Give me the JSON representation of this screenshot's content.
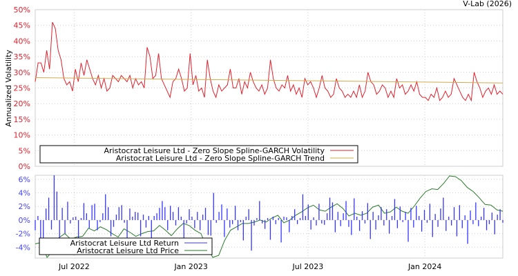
{
  "watermark": "V-Lab (2026)",
  "chart_data": [
    {
      "type": "line",
      "ylabel": "Annualized Volatility",
      "ylim": [
        0,
        50
      ],
      "xlim_months_since_2022_05": [
        0,
        24
      ],
      "yticks": [
        "0%",
        "5%",
        "10%",
        "15%",
        "20%",
        "25%",
        "30%",
        "35%",
        "40%",
        "45%",
        "50%"
      ],
      "legend_position": "bottom-left",
      "series": [
        {
          "name": "Aristocrat Leisure Ltd - Zero Slope Spline-GARCH Volatility",
          "color": "#e0202c",
          "values": [
            27,
            33,
            33,
            30,
            37,
            31,
            46,
            44,
            37,
            34,
            28,
            26,
            27,
            24,
            31,
            27,
            33,
            29,
            34,
            31,
            28,
            26,
            29,
            25,
            28,
            24,
            25,
            29,
            28,
            27,
            29,
            28,
            27,
            29,
            25,
            28,
            26,
            27,
            25,
            38,
            35,
            28,
            29,
            36,
            28,
            26,
            24,
            22,
            27,
            28,
            31,
            28,
            24,
            25,
            36,
            26,
            29,
            24,
            25,
            22,
            34,
            28,
            24,
            22,
            26,
            24,
            25,
            26,
            31,
            25,
            25,
            28,
            23,
            27,
            25,
            30,
            27,
            25,
            24,
            26,
            23,
            25,
            34,
            28,
            25,
            24,
            26,
            25,
            29,
            24,
            26,
            23,
            25,
            22,
            28,
            26,
            27,
            25,
            22,
            25,
            29,
            25,
            24,
            22,
            23,
            28,
            25,
            24,
            22,
            23,
            22,
            24,
            22,
            26,
            22,
            24,
            30,
            27,
            26,
            23,
            24,
            26,
            25,
            22,
            24,
            22,
            28,
            25,
            26,
            23,
            24,
            26,
            24,
            27,
            23,
            22,
            22,
            21,
            23,
            22,
            25,
            21,
            22,
            24,
            22,
            23,
            28,
            26,
            24,
            22,
            21,
            23,
            21,
            30,
            27,
            25,
            22,
            24,
            25,
            23,
            26,
            23,
            24,
            23
          ]
        },
        {
          "name": "Aristocrat Leisure Ltd - Zero Slope Spline-GARCH Trend",
          "color": "#d4a94a",
          "values": [
            28.3,
            26.6
          ]
        }
      ]
    },
    {
      "type": "bar+line",
      "ylim": [
        -5.6,
        6.6
      ],
      "yticks": [
        "-4%",
        "-2%",
        "0%",
        "2%",
        "4%",
        "6%"
      ],
      "xticks": [
        {
          "label": "Jul 2022",
          "month": 2
        },
        {
          "label": "Jan 2023",
          "month": 8
        },
        {
          "label": "Jul 2023",
          "month": 14
        },
        {
          "label": "Jan 2024",
          "month": 20
        }
      ],
      "legend_position": "bottom-left",
      "series": [
        {
          "name": "Aristocrat Leisure Ltd Return",
          "color": "#3333ff",
          "values": [
            -1.5,
            0.6,
            -3.5,
            -5,
            1.7,
            3.3,
            -1.4,
            6.6,
            4.2,
            -3,
            1.8,
            -2,
            2.7,
            -0.5,
            0.4,
            0.5,
            -2.7,
            0.3,
            2.5,
            1,
            -1.2,
            2.2,
            2.4,
            -1.5,
            -0.3,
            1,
            3.8,
            1.9,
            -2.4,
            -1,
            0.8,
            1.9,
            2.2,
            -0.4,
            -2.7,
            1.7,
            0.5,
            1.2,
            1.1,
            -2.4,
            0.8,
            -1.1,
            0.6,
            -3,
            0.6,
            1,
            1.8,
            2.8,
            1.9,
            -1.5,
            2.1,
            1.2,
            -0.8,
            1.9,
            0.5,
            -4,
            -0.5,
            1.6,
            0.5,
            -1.2,
            1.2,
            -1.5,
            0.8,
            1.8,
            -2.2,
            -2.3,
            4,
            -0.4,
            1.2,
            2.3,
            -2.5,
            1.7,
            -1.1,
            -0.6,
            2.1,
            -1.5,
            -0.3,
            -3,
            0.5,
            1.6,
            -4.5,
            -0.8,
            0.3,
            2.8,
            -0.5,
            -1.3,
            0.3,
            -2.9,
            0.5,
            -0.6,
            0.3,
            -3.3,
            0.5,
            0.4,
            -1.8,
            0.6,
            1.6,
            -0.6,
            0.3,
            3.8,
            0.6,
            2.3,
            -1.4,
            0.4,
            -0.8,
            2.4,
            -0.5,
            -0.7,
            1,
            3.3,
            2.6,
            -1.8,
            1.2,
            -0.9,
            1,
            2.8,
            -1,
            -2.2,
            3.2,
            0.5,
            -1.6,
            1.3,
            -0.5,
            2.5,
            -2.8,
            1.2,
            -1.4,
            0.7,
            1.9,
            -0.8,
            1.6,
            -2,
            0.6,
            3.1,
            -1.2,
            2,
            -0.3,
            1.2,
            -3.2,
            1.8,
            -1.1,
            2.1,
            0.6,
            -1.7,
            1.5,
            -0.4,
            2.4,
            -2.5,
            0.9,
            -1,
            1.7,
            3.3,
            -1.6,
            0.5,
            -0.8,
            1.9,
            -2.4,
            2.2,
            -1.2,
            0.7,
            -3.5,
            1.4,
            -0.6,
            2.6,
            -0.9,
            0.5,
            1.8,
            -1.5,
            -0.6,
            1.1,
            -2.1,
            0.8,
            1.6,
            -0.4
          ]
        },
        {
          "name": "Aristocrat Leisure Ltd Price",
          "color": "#2a7a2a",
          "values": [
            -3.5,
            -3.3,
            -5.5,
            -4.5,
            -2.6,
            -2,
            -2.8,
            -2.5,
            -2.4,
            -1.2,
            -1.6,
            -1,
            -1.4,
            -2,
            -2.5,
            -1.3,
            -1.8,
            -2.4,
            -2,
            -1.7,
            -1.6,
            -0.8,
            -1.5,
            -2.3,
            -1.3,
            -0.5,
            -0.8,
            -1.5,
            -2,
            -4,
            -5.5,
            -5.2,
            -3,
            -1.5,
            -1,
            -0.5,
            -0.5,
            -0.3,
            0,
            -0.3,
            0.3,
            0.7,
            -0.4,
            0,
            0.7,
            1.2,
            1.8,
            2.2,
            1.5,
            1.3,
            1.9,
            2.4,
            1.7,
            0.6,
            1,
            0.7,
            1,
            1.9,
            2.2,
            1,
            1.2,
            1.9,
            1.3,
            1,
            2,
            3.2,
            4.2,
            4.6,
            4.5,
            5.4,
            6.5,
            6.4,
            5.8,
            4.8,
            4.2,
            3.3,
            2.3,
            2.2,
            1.5,
            1.3
          ]
        }
      ]
    }
  ]
}
